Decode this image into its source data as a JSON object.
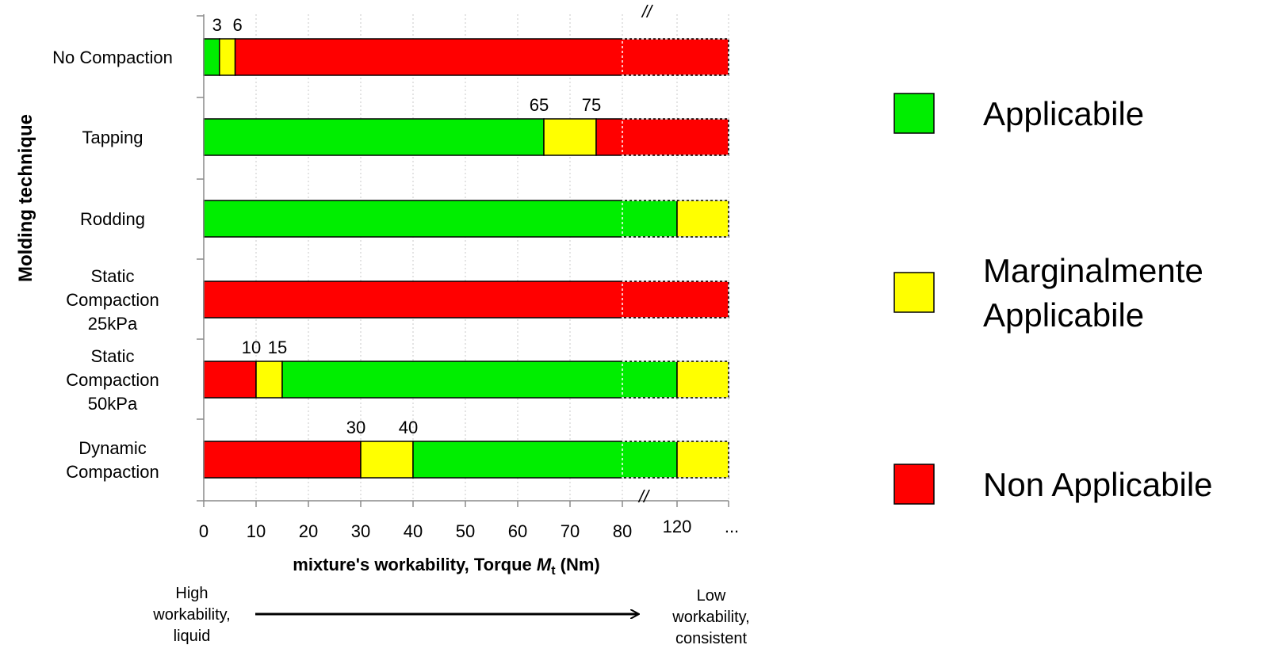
{
  "chart_data": {
    "type": "bar",
    "orientation": "horizontal",
    "stacked": true,
    "ylabel": "Molding technique",
    "xlabel": {
      "main": "mixture's workability, Torque ",
      "var": "M",
      "sub": "t",
      "unit": " (Nm)"
    },
    "x_ticks": [
      "0",
      "10",
      "20",
      "30",
      "40",
      "50",
      "60",
      "70",
      "80",
      "120",
      "..."
    ],
    "axis_break": "//",
    "legend_position": "right",
    "categories": [
      {
        "label_lines": [
          "No Compaction"
        ],
        "segments": [
          {
            "from": 0,
            "to": 3,
            "class": "A"
          },
          {
            "from": 3,
            "to": 6,
            "class": "M"
          },
          {
            "from": 6,
            "to": "...",
            "class": "N"
          }
        ],
        "annotations": [
          "3",
          "6"
        ]
      },
      {
        "label_lines": [
          "Tapping"
        ],
        "segments": [
          {
            "from": 0,
            "to": 65,
            "class": "A"
          },
          {
            "from": 65,
            "to": 75,
            "class": "M"
          },
          {
            "from": 75,
            "to": "...",
            "class": "N"
          }
        ],
        "annotations": [
          "65",
          "75"
        ]
      },
      {
        "label_lines": [
          "Rodding"
        ],
        "segments": [
          {
            "from": 0,
            "to": 120,
            "class": "A"
          },
          {
            "from": 120,
            "to": "...",
            "class": "M"
          }
        ],
        "annotations": []
      },
      {
        "label_lines": [
          "Static",
          "Compaction",
          "25kPa"
        ],
        "segments": [
          {
            "from": 0,
            "to": "...",
            "class": "N"
          }
        ],
        "annotations": []
      },
      {
        "label_lines": [
          "Static",
          "Compaction",
          "50kPa"
        ],
        "segments": [
          {
            "from": 0,
            "to": 10,
            "class": "N"
          },
          {
            "from": 10,
            "to": 15,
            "class": "M"
          },
          {
            "from": 15,
            "to": 120,
            "class": "A"
          },
          {
            "from": 120,
            "to": "...",
            "class": "M"
          }
        ],
        "annotations": [
          "10",
          "15"
        ]
      },
      {
        "label_lines": [
          "Dynamic",
          "Compaction"
        ],
        "segments": [
          {
            "from": 0,
            "to": 30,
            "class": "N"
          },
          {
            "from": 30,
            "to": 40,
            "class": "M"
          },
          {
            "from": 40,
            "to": 120,
            "class": "A"
          },
          {
            "from": 120,
            "to": "...",
            "class": "M"
          }
        ],
        "annotations": [
          "30",
          "40"
        ]
      }
    ],
    "legend": [
      {
        "key": "A",
        "label_lines": [
          "Applicabile"
        ],
        "color": "#00ee00"
      },
      {
        "key": "M",
        "label_lines": [
          "Marginalmente",
          "Applicabile"
        ],
        "color": "#ffff00"
      },
      {
        "key": "N",
        "label_lines": [
          "Non Applicabile"
        ],
        "color": "#ff0000"
      }
    ],
    "workability": {
      "left_lines": [
        "High",
        "workability,",
        "liquid"
      ],
      "right_lines": [
        "Low",
        "workability,",
        "consistent"
      ]
    }
  }
}
